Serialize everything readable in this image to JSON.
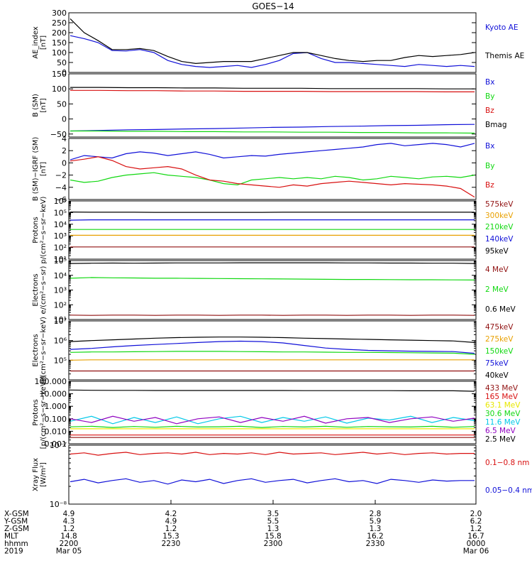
{
  "title": "GOES−14",
  "colors": {
    "black": "#000000",
    "blue": "#1010d8",
    "red": "#d81010",
    "green": "#10d810",
    "orange": "#e8a000",
    "yellow": "#e8e800",
    "cyan": "#00c8e8",
    "purple": "#9000c0",
    "darkred": "#901010"
  },
  "chart_data": [
    {
      "type": "line",
      "panel": "ae",
      "ylabel": [
        "AE_index",
        "[nT]"
      ],
      "ylim": [
        0,
        300
      ],
      "yticks": [
        "0",
        "50",
        "100",
        "150",
        "200",
        "250",
        "300"
      ],
      "ytick_values": [
        0,
        50,
        100,
        150,
        200,
        250,
        300
      ],
      "series": [
        {
          "name": "Kyoto AE",
          "color": "blue",
          "values": [
            185,
            170,
            150,
            110,
            108,
            115,
            100,
            60,
            40,
            30,
            25,
            30,
            35,
            25,
            40,
            60,
            95,
            100,
            70,
            50,
            50,
            45,
            40,
            35,
            30,
            40,
            35,
            30,
            35,
            30
          ]
        },
        {
          "name": "Themis AE",
          "color": "black",
          "values": [
            270,
            200,
            160,
            115,
            115,
            120,
            110,
            80,
            55,
            45,
            50,
            55,
            55,
            55,
            70,
            85,
            100,
            100,
            85,
            70,
            60,
            55,
            60,
            60,
            75,
            85,
            80,
            85,
            90,
            100
          ]
        }
      ]
    },
    {
      "type": "line",
      "panel": "bsm",
      "ylabel": [
        "B (SM)",
        "[nT]"
      ],
      "ylim": [
        -60,
        150
      ],
      "yticks": [
        "−50",
        "0",
        "50",
        "100",
        "150"
      ],
      "ytick_values": [
        -50,
        0,
        50,
        100,
        150
      ],
      "series": [
        {
          "name": "Bx",
          "color": "blue",
          "values": [
            -40,
            -38,
            -36,
            -35,
            -33,
            -32,
            -30,
            -28,
            -27,
            -25,
            -24,
            -22,
            -21,
            -19,
            -18
          ]
        },
        {
          "name": "By",
          "color": "green",
          "values": [
            -40,
            -40,
            -41,
            -41,
            -42,
            -42,
            -43,
            -43,
            -44,
            -44,
            -45,
            -45,
            -46,
            -46,
            -47
          ]
        },
        {
          "name": "Bz",
          "color": "red",
          "values": [
            95,
            95,
            94,
            94,
            93,
            93,
            92,
            92,
            92,
            91,
            91,
            91,
            91,
            90,
            90
          ]
        },
        {
          "name": "Bmag",
          "color": "black",
          "values": [
            105,
            105,
            104,
            104,
            103,
            103,
            102,
            102,
            102,
            101,
            101,
            101,
            101,
            100,
            100
          ]
        }
      ]
    },
    {
      "type": "line",
      "panel": "bres",
      "ylabel": [
        "B (SM)−IGRF (SM)",
        "[nT]"
      ],
      "ylim": [
        -6,
        4
      ],
      "yticks": [
        "−6",
        "−4",
        "−2",
        "0",
        "2",
        "4"
      ],
      "ytick_values": [
        -6,
        -4,
        -2,
        0,
        2,
        4
      ],
      "series": [
        {
          "name": "Bx",
          "color": "blue",
          "values": [
            0.5,
            1.2,
            1.0,
            0.8,
            1.5,
            1.8,
            1.6,
            1.2,
            1.5,
            1.8,
            1.4,
            0.8,
            1.0,
            1.2,
            1.1,
            1.4,
            1.6,
            1.8,
            2.0,
            2.2,
            2.4,
            2.6,
            3.0,
            3.2,
            2.8,
            3.0,
            3.2,
            3.0,
            2.6,
            3.2
          ]
        },
        {
          "name": "By",
          "color": "green",
          "values": [
            -2.8,
            -3.2,
            -3.0,
            -2.4,
            -2.0,
            -1.8,
            -1.6,
            -2.0,
            -2.2,
            -2.4,
            -2.8,
            -3.4,
            -3.6,
            -2.8,
            -2.6,
            -2.4,
            -2.6,
            -2.4,
            -2.6,
            -2.2,
            -2.4,
            -2.8,
            -2.6,
            -2.2,
            -2.4,
            -2.6,
            -2.3,
            -2.2,
            -2.4,
            -2.0
          ]
        },
        {
          "name": "Bz",
          "color": "red",
          "values": [
            0.3,
            0.6,
            1.0,
            0.4,
            -0.6,
            -1.0,
            -0.8,
            -0.6,
            -1.0,
            -2.0,
            -2.8,
            -3.0,
            -3.4,
            -3.6,
            -3.8,
            -4.0,
            -3.6,
            -3.8,
            -3.4,
            -3.2,
            -3.0,
            -3.2,
            -3.4,
            -3.6,
            -3.4,
            -3.5,
            -3.6,
            -3.8,
            -4.2,
            -5.6
          ]
        }
      ]
    },
    {
      "type": "line",
      "panel": "protons",
      "ylabel": [
        "Protons",
        "p/(cm²−s−sr−keV)"
      ],
      "scale": "log",
      "ylim_exp": [
        1,
        6
      ],
      "yticks": [
        "10¹",
        "10²",
        "10³",
        "10⁴",
        "10⁵",
        "10⁶"
      ],
      "series": [
        {
          "name": "575keV",
          "color": "darkred",
          "values_log": [
            2.05,
            2.05,
            2.05,
            2.05,
            2.05,
            2.05,
            2.05,
            2.05,
            2.05,
            2.05,
            2.05,
            2.05,
            2.05,
            2.05,
            2.05,
            2.05,
            2.05,
            2.05,
            2.05,
            2.05
          ]
        },
        {
          "name": "300keV",
          "color": "orange",
          "values_log": [
            3.05,
            3.05,
            3.05,
            3.05,
            3.05,
            3.05,
            3.05,
            3.05,
            3.05,
            3.05,
            3.05,
            3.05,
            3.05,
            3.05,
            3.05,
            3.05,
            3.05,
            3.05,
            3.05,
            3.05
          ]
        },
        {
          "name": "210keV",
          "color": "green",
          "values_log": [
            3.55,
            3.55,
            3.55,
            3.55,
            3.55,
            3.55,
            3.55,
            3.55,
            3.55,
            3.55,
            3.55,
            3.55,
            3.55,
            3.55,
            3.55,
            3.55,
            3.55,
            3.55,
            3.55,
            3.55
          ]
        },
        {
          "name": "140keV",
          "color": "blue",
          "values_log": [
            4.35,
            4.38,
            4.38,
            4.38,
            4.38,
            4.38,
            4.38,
            4.38,
            4.38,
            4.38,
            4.38,
            4.38,
            4.38,
            4.38,
            4.38,
            4.38,
            4.38,
            4.38,
            4.38,
            4.38
          ]
        },
        {
          "name": "95keV",
          "color": "black",
          "values_log": [
            5.05,
            5.03,
            5.03,
            5.03,
            5.02,
            5.02,
            5.02,
            5.02,
            5.02,
            5.02,
            5.03,
            5.03,
            5.03,
            5.03,
            5.03,
            5.03,
            5.03,
            5.03,
            5.03,
            5.03
          ]
        }
      ]
    },
    {
      "type": "line",
      "panel": "electrons_hi",
      "ylabel": [
        "Electrons",
        "e/(cm²−s−sr)"
      ],
      "scale": "log",
      "ylim_exp": [
        1,
        5
      ],
      "yticks": [
        "10¹",
        "10²",
        "10³",
        "10⁴",
        "10⁵"
      ],
      "series": [
        {
          "name": "4 MeV",
          "color": "darkred",
          "values_log": [
            1.3,
            1.28,
            1.3,
            1.3,
            1.28,
            1.3,
            1.3,
            1.28,
            1.3,
            1.3,
            1.28,
            1.3,
            1.3,
            1.28,
            1.3,
            1.3,
            1.28,
            1.3,
            1.3,
            1.28
          ]
        },
        {
          "name": "2 MeV",
          "color": "green",
          "values_log": [
            3.8,
            3.85,
            3.83,
            3.82,
            3.8,
            3.8,
            3.79,
            3.78,
            3.77,
            3.76,
            3.75,
            3.74,
            3.73,
            3.72,
            3.72,
            3.71,
            3.7,
            3.7,
            3.69,
            3.68
          ]
        },
        {
          "name": "0.6 MeV",
          "color": "black",
          "values_log": [
            4.8,
            4.82,
            4.83,
            4.82,
            4.83,
            4.84,
            4.84,
            4.84,
            4.85,
            4.85,
            4.85,
            4.85,
            4.85,
            4.84,
            4.84,
            4.83,
            4.83,
            4.82,
            4.82,
            4.8
          ]
        }
      ]
    },
    {
      "type": "line",
      "panel": "electrons_lo",
      "ylabel": [
        "Electrons",
        "e/(cm²−s−sr−keV)"
      ],
      "scale": "log",
      "ylim_exp": [
        4,
        7
      ],
      "yticks": [
        "10⁵",
        "10⁶",
        "10⁷"
      ],
      "ytick_exps": [
        5,
        6,
        7
      ],
      "series": [
        {
          "name": "475keV",
          "color": "darkred",
          "values_log": [
            4.45,
            4.45,
            4.45,
            4.45,
            4.45,
            4.45,
            4.45,
            4.45,
            4.45,
            4.45,
            4.45,
            4.45,
            4.45,
            4.45,
            4.45,
            4.45,
            4.45,
            4.45,
            4.45,
            4.45
          ]
        },
        {
          "name": "275keV",
          "color": "orange",
          "values_log": [
            5.0,
            5.02,
            5.02,
            5.02,
            5.02,
            5.02,
            5.02,
            5.02,
            5.02,
            5.02,
            5.02,
            5.02,
            5.02,
            5.02,
            5.02,
            5.02,
            5.02,
            5.02,
            5.02,
            5.02
          ]
        },
        {
          "name": "150keV",
          "color": "green",
          "values_log": [
            5.4,
            5.42,
            5.42,
            5.43,
            5.44,
            5.45,
            5.45,
            5.45,
            5.44,
            5.43,
            5.42,
            5.42,
            5.41,
            5.4,
            5.4,
            5.39,
            5.38,
            5.37,
            5.36,
            5.3
          ]
        },
        {
          "name": "75keV",
          "color": "blue",
          "values_log": [
            5.55,
            5.6,
            5.68,
            5.75,
            5.8,
            5.85,
            5.9,
            5.95,
            5.97,
            5.95,
            5.88,
            5.75,
            5.62,
            5.55,
            5.5,
            5.48,
            5.46,
            5.45,
            5.44,
            5.35
          ]
        },
        {
          "name": "40keV",
          "color": "black",
          "values_log": [
            5.95,
            6.0,
            6.04,
            6.08,
            6.12,
            6.15,
            6.17,
            6.18,
            6.18,
            6.17,
            6.15,
            6.12,
            6.1,
            6.08,
            6.06,
            6.04,
            6.02,
            6.0,
            5.98,
            5.9
          ]
        }
      ]
    },
    {
      "type": "line",
      "panel": "protons_hi",
      "ylabel": [
        "Protons",
        "[p/(cm²−s−sr−keV)]"
      ],
      "scale": "log",
      "ylim_exp": [
        -3,
        2
      ],
      "yticks": [
        "0.001",
        "0.010",
        "0.100",
        "1.000",
        "10.000",
        "100.000"
      ],
      "ytick_exps": [
        -3,
        -2,
        -1,
        0,
        1,
        2
      ],
      "series": [
        {
          "name": "433 MeV",
          "color": "darkred",
          "values_log": [
            -2.5,
            -2.5,
            -2.5,
            -2.5,
            -2.5,
            -2.5,
            -2.5,
            -2.5,
            -2.5,
            -2.5,
            -2.5,
            -2.5,
            -2.5,
            -2.5,
            -2.5,
            -2.5,
            -2.5,
            -2.5,
            -2.5,
            -2.5
          ]
        },
        {
          "name": "165 MeV",
          "color": "red",
          "values_log": [
            -2.3,
            -2.3,
            -2.3,
            -2.3,
            -2.3,
            -2.3,
            -2.3,
            -2.3,
            -2.3,
            -2.3,
            -2.3,
            -2.3,
            -2.3,
            -2.3,
            -2.3,
            -2.3,
            -2.3,
            -2.3,
            -2.3,
            -2.3
          ]
        },
        {
          "name": "63.1 MeV",
          "color": "yellow",
          "values_log": [
            -1.8,
            -1.8,
            -1.8,
            -1.8,
            -1.8,
            -1.8,
            -1.8,
            -1.8,
            -1.8,
            -1.8,
            -1.8,
            -1.8,
            -1.8,
            -1.8,
            -1.8,
            -1.8,
            -1.8,
            -1.8,
            -1.8,
            -1.8
          ]
        },
        {
          "name": "30.6 MeV",
          "color": "green",
          "values_log": [
            -1.65,
            -1.6,
            -1.7,
            -1.62,
            -1.68,
            -1.6,
            -1.66,
            -1.64,
            -1.6,
            -1.7,
            -1.62,
            -1.66,
            -1.6,
            -1.68,
            -1.62,
            -1.64,
            -1.66,
            -1.6,
            -1.68,
            -1.62
          ]
        },
        {
          "name": "11.6 MeV",
          "color": "cyan",
          "values_log": [
            -1.2,
            -0.8,
            -1.4,
            -0.9,
            -1.3,
            -0.85,
            -1.4,
            -1.0,
            -0.8,
            -1.3,
            -0.9,
            -1.2,
            -0.85,
            -1.35,
            -0.95,
            -1.1,
            -0.8,
            -1.3,
            -0.9,
            -1.15
          ]
        },
        {
          "name": "6.5 MeV",
          "color": "purple",
          "values_log": [
            -1.0,
            -1.3,
            -0.8,
            -1.2,
            -0.9,
            -1.4,
            -1.0,
            -0.85,
            -1.3,
            -0.9,
            -1.2,
            -0.8,
            -1.35,
            -1.0,
            -0.9,
            -1.3,
            -1.0,
            -0.85,
            -1.2,
            -0.95
          ]
        },
        {
          "name": "2.5 MeV",
          "color": "black",
          "values_log": [
            1.3,
            1.28,
            1.27,
            1.27,
            1.26,
            1.26,
            1.26,
            1.26,
            1.26,
            1.26,
            1.26,
            1.25,
            1.25,
            1.25,
            1.25,
            1.25,
            1.24,
            1.24,
            1.24,
            1.2
          ]
        }
      ]
    },
    {
      "type": "line",
      "panel": "xray",
      "ylabel": [
        "Xray Flux",
        "[W/m²]"
      ],
      "scale": "log",
      "ylim_exp": [
        -8,
        -7
      ],
      "yticks": [
        "10⁻⁸",
        "10⁻⁷"
      ],
      "ytick_exps": [
        -8,
        -7
      ],
      "series": [
        {
          "name": "0.1−0.8 nm",
          "color": "red",
          "values_log": [
            -7.15,
            -7.13,
            -7.17,
            -7.14,
            -7.12,
            -7.16,
            -7.14,
            -7.13,
            -7.15,
            -7.12,
            -7.16,
            -7.14,
            -7.15,
            -7.13,
            -7.16,
            -7.12,
            -7.15,
            -7.14,
            -7.13,
            -7.16,
            -7.14,
            -7.12,
            -7.15,
            -7.13,
            -7.16,
            -7.14,
            -7.13,
            -7.15,
            -7.14,
            -7.14
          ]
        },
        {
          "name": "0.05−0.4 nm",
          "color": "blue",
          "values_log": [
            -7.62,
            -7.58,
            -7.64,
            -7.6,
            -7.57,
            -7.63,
            -7.6,
            -7.66,
            -7.59,
            -7.62,
            -7.58,
            -7.65,
            -7.6,
            -7.57,
            -7.63,
            -7.6,
            -7.58,
            -7.64,
            -7.6,
            -7.57,
            -7.62,
            -7.6,
            -7.65,
            -7.58,
            -7.6,
            -7.63,
            -7.59,
            -7.61,
            -7.6,
            -7.6
          ]
        }
      ]
    }
  ],
  "footer": {
    "rows": [
      {
        "label": "X-GSM",
        "values": [
          "4.9",
          "4.2",
          "3.5",
          "2.8",
          "2.0"
        ]
      },
      {
        "label": "Y-GSM",
        "values": [
          "4.3",
          "4.9",
          "5.5",
          "5.9",
          "6.2"
        ]
      },
      {
        "label": "Z-GSM",
        "values": [
          "1.2",
          "1.2",
          "1.3",
          "1.3",
          "1.2"
        ]
      },
      {
        "label": "MLT",
        "values": [
          "14.8",
          "15.3",
          "15.8",
          "16.2",
          "16.7"
        ]
      },
      {
        "label": "hhmm",
        "values": [
          "2200",
          "2230",
          "2300",
          "2330",
          "0000"
        ]
      },
      {
        "label": "2019",
        "values": [
          "Mar 05",
          "",
          "",
          "",
          "Mar 06"
        ]
      }
    ]
  }
}
